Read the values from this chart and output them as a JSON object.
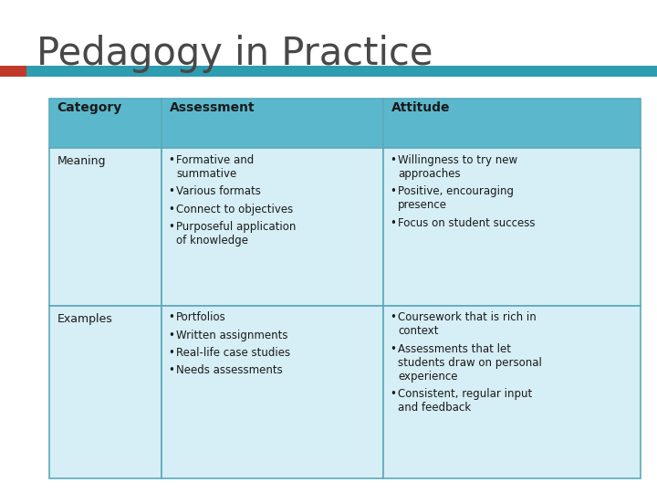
{
  "title": "Pedagogy in Practice",
  "title_color": "#484848",
  "title_fontsize": 30,
  "accent_bar_red": "#C0392B",
  "accent_bar_teal": "#2E9DB0",
  "header_bg": "#5BB8CC",
  "row_bg": "#D6EEF5",
  "table_border": "#5AAABB",
  "text_color": "#1A1A1A",
  "headers": [
    "Category",
    "Assessment",
    "Attitude"
  ],
  "assessment_meaning": [
    "Formative and\nsummative",
    "Various formats",
    "Connect to objectives",
    "Purposeful application\nof knowledge"
  ],
  "attitude_meaning": [
    "Willingness to try new\napproaches",
    "Positive, encouraging\npresence",
    "Focus on student success"
  ],
  "assessment_examples": [
    "Portfolios",
    "Written assignments",
    "Real-life case studies",
    "Needs assessments"
  ],
  "attitude_examples": [
    "Coursework that is rich in\ncontext",
    "Assessments that let\nstudents draw on personal\nexperience",
    "Consistent, regular input\nand feedback"
  ]
}
